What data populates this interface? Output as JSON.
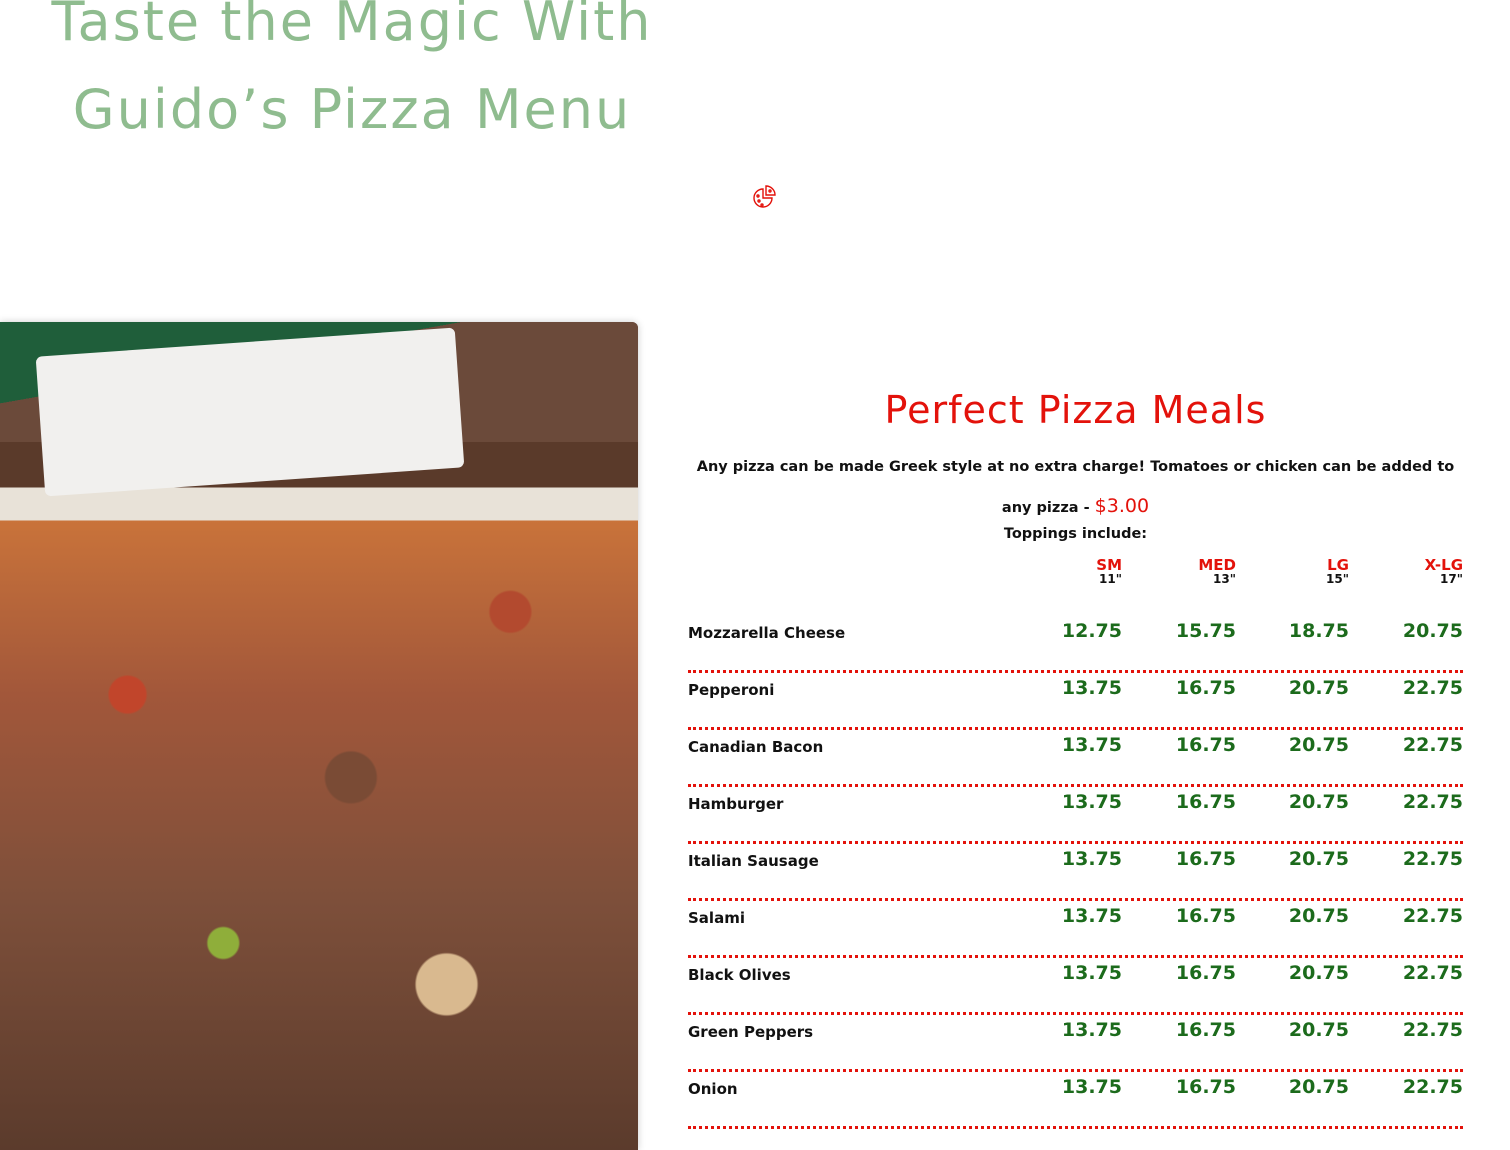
{
  "hero": {
    "title_line1": "Taste the Magic With",
    "title_line2": "Guido’s Pizza Menu",
    "icon": "pizza-slice-icon"
  },
  "colors": {
    "title": "#8fbc8f",
    "accent": "#e3120b",
    "price": "#1c6b1c"
  },
  "menu": {
    "heading": "Perfect Pizza Meals",
    "description": "Any pizza can be made Greek style at no extra charge! Tomatoes or chicken can be added to any pizza -",
    "extra_price": "$3.00",
    "toppings_label": "Toppings include:",
    "sizes": [
      {
        "label": "SM",
        "inches": "11\""
      },
      {
        "label": "MED",
        "inches": "13\""
      },
      {
        "label": "LG",
        "inches": "15\""
      },
      {
        "label": "X-LG",
        "inches": "17\""
      }
    ],
    "items": [
      {
        "name": "Mozzarella Cheese",
        "prices": [
          "12.75",
          "15.75",
          "18.75",
          "20.75"
        ]
      },
      {
        "name": "Pepperoni",
        "prices": [
          "13.75",
          "16.75",
          "20.75",
          "22.75"
        ]
      },
      {
        "name": "Canadian Bacon",
        "prices": [
          "13.75",
          "16.75",
          "20.75",
          "22.75"
        ]
      },
      {
        "name": "Hamburger",
        "prices": [
          "13.75",
          "16.75",
          "20.75",
          "22.75"
        ]
      },
      {
        "name": "Italian Sausage",
        "prices": [
          "13.75",
          "16.75",
          "20.75",
          "22.75"
        ]
      },
      {
        "name": "Salami",
        "prices": [
          "13.75",
          "16.75",
          "20.75",
          "22.75"
        ]
      },
      {
        "name": "Black Olives",
        "prices": [
          "13.75",
          "16.75",
          "20.75",
          "22.75"
        ]
      },
      {
        "name": "Green Peppers",
        "prices": [
          "13.75",
          "16.75",
          "20.75",
          "22.75"
        ]
      },
      {
        "name": "Onion",
        "prices": [
          "13.75",
          "16.75",
          "20.75",
          "22.75"
        ]
      }
    ]
  }
}
